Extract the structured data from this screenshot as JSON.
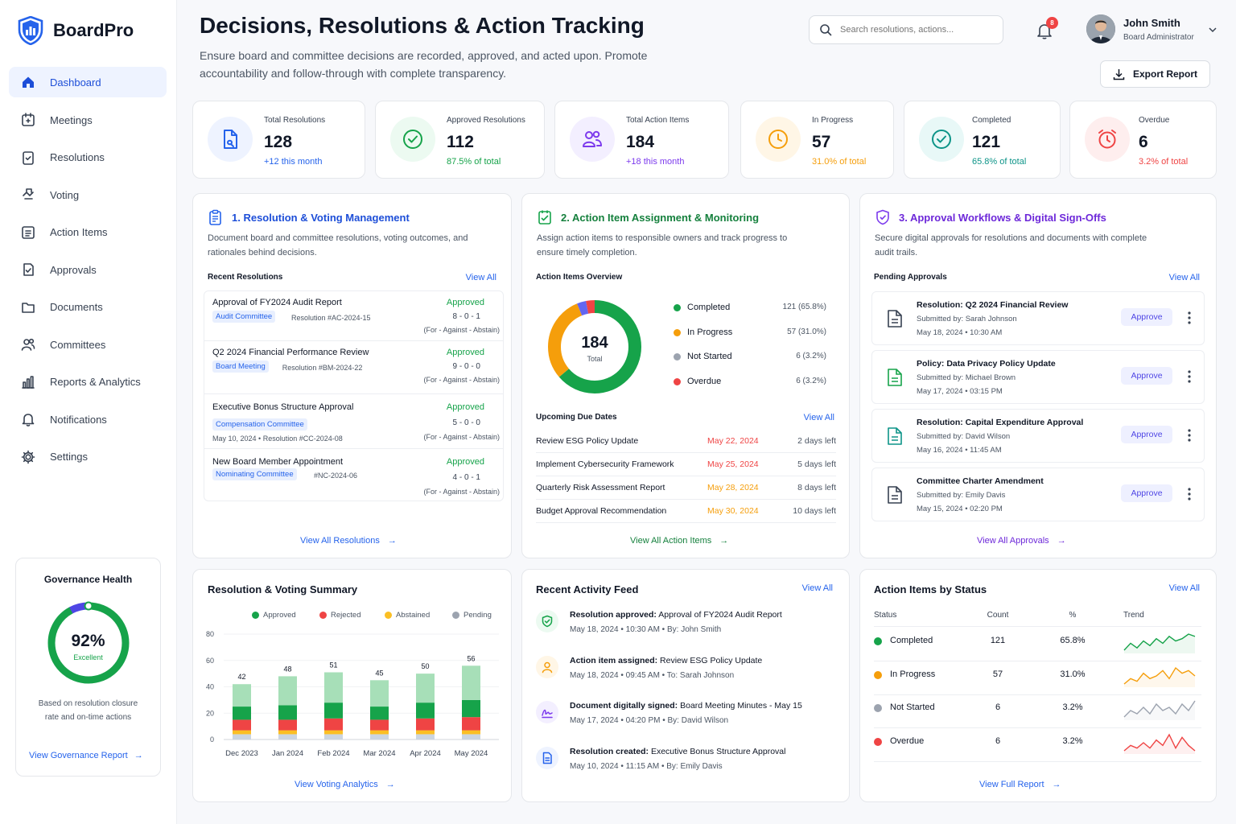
{
  "app": {
    "name": "BoardPro"
  },
  "nav": [
    {
      "label": "Dashboard",
      "icon": "home-icon",
      "active": true
    },
    {
      "label": "Meetings",
      "icon": "calendar-icon"
    },
    {
      "label": "Resolutions",
      "icon": "document-check-icon"
    },
    {
      "label": "Voting",
      "icon": "hand-vote-icon"
    },
    {
      "label": "Action Items",
      "icon": "checklist-icon"
    },
    {
      "label": "Approvals",
      "icon": "approval-check-icon"
    },
    {
      "label": "Documents",
      "icon": "folder-icon"
    },
    {
      "label": "Committees",
      "icon": "users-icon"
    },
    {
      "label": "Reports & Analytics",
      "icon": "bar-chart-icon"
    },
    {
      "label": "Notifications",
      "icon": "bell-icon"
    },
    {
      "label": "Settings",
      "icon": "gear-icon"
    }
  ],
  "governance": {
    "title": "Governance Health",
    "percent": "92%",
    "percent_value": 0.92,
    "label": "Excellent",
    "description": "Based on resolution closure rate and on-time actions",
    "link": "View Governance Report"
  },
  "header": {
    "title": "Decisions, Resolutions & Action Tracking",
    "subtitle": "Ensure board and committee decisions are recorded, approved, and acted upon. Promote accountability and follow-through with complete transparency.",
    "search_placeholder": "Search resolutions, actions...",
    "notification_count": "8",
    "user_name": "John Smith",
    "user_role": "Board Administrator",
    "export_label": "Export Report"
  },
  "stats": [
    {
      "label": "Total Resolutions",
      "value": "128",
      "sub": "+12 this month",
      "color": "#2563eb",
      "bg": "#eef3ff",
      "icon": "document-icon"
    },
    {
      "label": "Approved Resolutions",
      "value": "112",
      "sub": "87.5% of total",
      "color": "#16a34a",
      "bg": "#ecfaf1",
      "icon": "check-circle-icon"
    },
    {
      "label": "Total Action Items",
      "value": "184",
      "sub": "+18 this month",
      "color": "#7c3aed",
      "bg": "#f3efff",
      "icon": "users-icon"
    },
    {
      "label": "In Progress",
      "value": "57",
      "sub": "31.0% of total",
      "color": "#f59e0b",
      "bg": "#fff6e6",
      "icon": "clock-icon"
    },
    {
      "label": "Completed",
      "value": "121",
      "sub": "65.8% of total",
      "color": "#0d9488",
      "bg": "#e8f8f7",
      "icon": "check-circle-icon"
    },
    {
      "label": "Overdue",
      "value": "6",
      "sub": "3.2% of total",
      "color": "#ef4444",
      "bg": "#feeeee",
      "icon": "alarm-icon"
    }
  ],
  "resolutions": {
    "title": "1. Resolution & Voting Management",
    "description": "Document board and committee resolutions, voting outcomes, and rationales behind decisions.",
    "recent_label": "Recent Resolutions",
    "view_all": "View All",
    "vote_legend": "(For - Against - Abstain)",
    "items": [
      {
        "title": "Approval of FY2024 Audit Report",
        "tag": "Audit Committee",
        "meta": "Resolution #AC-2024-15",
        "status": "Approved",
        "score": "8 - 0 - 1"
      },
      {
        "title": "Q2 2024 Financial Performance Review",
        "tag": "Board Meeting",
        "meta": "Resolution #BM-2024-22",
        "status": "Approved",
        "score": "9 - 0 - 0"
      },
      {
        "title": "Executive Bonus Structure Approval",
        "tag": "Compensation Committee",
        "meta": "May 10, 2024 • Resolution #CC-2024-08",
        "status": "Approved",
        "score": "5 - 0 - 0"
      },
      {
        "title": "New Board Member Appointment",
        "tag": "Nominating Committee",
        "meta": "#NC-2024-06",
        "status": "Approved",
        "score": "4 - 0 - 1"
      }
    ],
    "footer_link": "View All Resolutions"
  },
  "actions": {
    "title": "2. Action Item Assignment & Monitoring",
    "description": "Assign action items to responsible owners and track progress to ensure timely completion.",
    "overview_label": "Action Items Overview",
    "donut_total": "184",
    "donut_total_label": "Total",
    "legend": [
      {
        "name": "Completed",
        "value": "121 (65.8%)",
        "count": 121,
        "color": "#16a34a"
      },
      {
        "name": "In Progress",
        "value": "57 (31.0%)",
        "count": 57,
        "color": "#f59e0b"
      },
      {
        "name": "Not Started",
        "value": "6 (3.2%)",
        "count": 6,
        "color": "#6366f1",
        "dot": "#9ca3af"
      },
      {
        "name": "Overdue",
        "value": "6 (3.2%)",
        "count": 6,
        "color": "#ef4444"
      }
    ],
    "due_label": "Upcoming Due Dates",
    "due_view_all": "View All",
    "due": [
      {
        "title": "Review ESG Policy Update",
        "date": "May 22, 2024",
        "left": "2 days left",
        "color": "#ef4444"
      },
      {
        "title": "Implement Cybersecurity Framework",
        "date": "May 25, 2024",
        "left": "5 days left",
        "color": "#ef4444"
      },
      {
        "title": "Quarterly Risk Assessment Report",
        "date": "May 28, 2024",
        "left": "8 days left",
        "color": "#f59e0b"
      },
      {
        "title": "Budget Approval Recommendation",
        "date": "May 30, 2024",
        "left": "10 days left",
        "color": "#f59e0b"
      }
    ],
    "footer_link": "View All Action Items"
  },
  "approvals": {
    "title": "3. Approval Workflows & Digital Sign-Offs",
    "description": "Secure digital approvals for resolutions and documents with complete audit trails.",
    "pending_label": "Pending Approvals",
    "view_all": "View All",
    "button_label": "Approve",
    "items": [
      {
        "title": "Resolution: Q2 2024 Financial Review",
        "submitted": "Submitted by: Sarah Johnson",
        "date": "May 18, 2024 • 10:30 AM",
        "color": "#374151"
      },
      {
        "title": "Policy: Data Privacy Policy Update",
        "submitted": "Submitted by: Michael Brown",
        "date": "May 17, 2024 • 03:15 PM",
        "color": "#16a34a"
      },
      {
        "title": "Resolution: Capital Expenditure Approval",
        "submitted": "Submitted by: David Wilson",
        "date": "May 16, 2024 • 11:45 AM",
        "color": "#0d9488"
      },
      {
        "title": "Committee Charter Amendment",
        "submitted": "Submitted by: Emily Davis",
        "date": "May 15, 2024 • 02:20 PM",
        "color": "#374151"
      }
    ],
    "footer_link": "View All Approvals"
  },
  "voting_summary": {
    "title": "Resolution & Voting Summary",
    "footer_link": "View Voting Analytics"
  },
  "chart_data": {
    "type": "bar",
    "stacked": true,
    "categories": [
      "Dec 2023",
      "Jan 2024",
      "Feb 2024",
      "Mar 2024",
      "Apr 2024",
      "May 2024"
    ],
    "totals": [
      42,
      48,
      51,
      45,
      50,
      56
    ],
    "series": [
      {
        "name": "Approved",
        "color": "#16a34a",
        "values": [
          10,
          11,
          12,
          10,
          12,
          13
        ]
      },
      {
        "name": "Rejected",
        "color": "#ef4444",
        "values": [
          8,
          8,
          9,
          8,
          9,
          10
        ]
      },
      {
        "name": "Abstained",
        "color": "#fbbf24",
        "values": [
          3,
          3,
          3,
          3,
          3,
          3
        ]
      },
      {
        "name": "Pending",
        "color": "#9ca3af",
        "values": [
          21,
          26,
          27,
          24,
          26,
          30
        ]
      }
    ],
    "yticks": [
      0,
      20,
      40,
      60,
      80
    ],
    "ylim": [
      0,
      80
    ]
  },
  "activity": {
    "title": "Recent Activity Feed",
    "view_all": "View All",
    "items": [
      {
        "action": "Resolution approved:",
        "subject": "Approval of FY2024 Audit Report",
        "meta": "May 18, 2024  •  10:30 AM  •  By: John Smith",
        "color": "#16a34a",
        "bg": "#ecfaf1",
        "icon": "shield-check-icon"
      },
      {
        "action": "Action item assigned:",
        "subject": "Review ESG Policy Update",
        "meta": "May 18, 2024  •  09:45 AM  •  To: Sarah Johnson",
        "color": "#f59e0b",
        "bg": "#fff6e6",
        "icon": "user-icon"
      },
      {
        "action": "Document digitally signed:",
        "subject": "Board Meeting Minutes - May 15",
        "meta": "May 17, 2024  •  04:20 PM  •  By: David Wilson",
        "color": "#7c3aed",
        "bg": "#f3efff",
        "icon": "signature-icon"
      },
      {
        "action": "Resolution created:",
        "subject": "Executive Bonus Structure Approval",
        "meta": "May 10, 2024  •  11:15 AM  •  By: Emily Davis",
        "color": "#2563eb",
        "bg": "#eef3ff",
        "icon": "document-icon"
      }
    ]
  },
  "status_table": {
    "title": "Action Items by Status",
    "view_all": "View All",
    "headers": [
      "Status",
      "Count",
      "%",
      "Trend"
    ],
    "rows": [
      {
        "status": "Completed",
        "count": "121",
        "pct": "65.8%",
        "color": "#16a34a",
        "trend": [
          3,
          6,
          4,
          7,
          5,
          8,
          6,
          9,
          7,
          8,
          10,
          9
        ]
      },
      {
        "status": "In Progress",
        "count": "57",
        "pct": "31.0%",
        "color": "#f59e0b",
        "trend": [
          3,
          5,
          4,
          7,
          5,
          6,
          8,
          5,
          9,
          7,
          8,
          6
        ]
      },
      {
        "status": "Not Started",
        "count": "6",
        "pct": "3.2%",
        "color": "#9ca3af",
        "trend": [
          4,
          6,
          5,
          7,
          5,
          8,
          6,
          7,
          5,
          8,
          6,
          9
        ]
      },
      {
        "status": "Overdue",
        "count": "6",
        "pct": "3.2%",
        "color": "#ef4444",
        "trend": [
          3,
          5,
          4,
          6,
          4,
          7,
          5,
          9,
          4,
          8,
          5,
          3
        ]
      }
    ],
    "footer_link": "View Full Report"
  }
}
